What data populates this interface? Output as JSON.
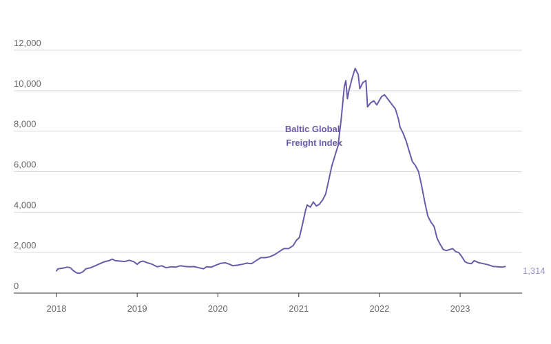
{
  "chart_data": {
    "type": "line",
    "colors": {
      "series": "#6a5aa8",
      "end_label": "#9a8fcc"
    },
    "ylim": [
      0,
      12000
    ],
    "yticks": [
      {
        "value": 0,
        "label": "0"
      },
      {
        "value": 2000,
        "label": "2,000"
      },
      {
        "value": 4000,
        "label": "4,000"
      },
      {
        "value": 6000,
        "label": "6,000"
      },
      {
        "value": 8000,
        "label": "8,000"
      },
      {
        "value": 10000,
        "label": "10,000"
      },
      {
        "value": 12000,
        "label": "12,000"
      }
    ],
    "xlim": [
      "2018-01-01",
      "2023-08-10"
    ],
    "xticks": [
      {
        "value": "2018-01-01",
        "label": "2018"
      },
      {
        "value": "2019-01-01",
        "label": "2019"
      },
      {
        "value": "2020-01-01",
        "label": "2020"
      },
      {
        "value": "2021-01-01",
        "label": "2021"
      },
      {
        "value": "2022-01-01",
        "label": "2022"
      },
      {
        "value": "2023-01-01",
        "label": "2023"
      }
    ],
    "series": [
      {
        "name": "Baltic Global Freight Index",
        "end_value_label": "1,314",
        "points": [
          [
            "2018-01-01",
            1100
          ],
          [
            "2018-01-08",
            1200
          ],
          [
            "2018-01-29",
            1230
          ],
          [
            "2018-02-19",
            1280
          ],
          [
            "2018-03-05",
            1250
          ],
          [
            "2018-03-19",
            1100
          ],
          [
            "2018-04-02",
            1000
          ],
          [
            "2018-04-16",
            980
          ],
          [
            "2018-04-30",
            1050
          ],
          [
            "2018-05-14",
            1200
          ],
          [
            "2018-06-04",
            1250
          ],
          [
            "2018-06-25",
            1350
          ],
          [
            "2018-07-16",
            1450
          ],
          [
            "2018-08-06",
            1550
          ],
          [
            "2018-08-27",
            1600
          ],
          [
            "2018-09-10",
            1680
          ],
          [
            "2018-09-24",
            1600
          ],
          [
            "2018-10-15",
            1580
          ],
          [
            "2018-11-05",
            1560
          ],
          [
            "2018-11-26",
            1620
          ],
          [
            "2018-12-17",
            1550
          ],
          [
            "2019-01-01",
            1420
          ],
          [
            "2019-01-14",
            1540
          ],
          [
            "2019-01-28",
            1580
          ],
          [
            "2019-02-18",
            1490
          ],
          [
            "2019-03-11",
            1420
          ],
          [
            "2019-04-01",
            1300
          ],
          [
            "2019-04-22",
            1350
          ],
          [
            "2019-05-13",
            1250
          ],
          [
            "2019-06-03",
            1300
          ],
          [
            "2019-06-24",
            1280
          ],
          [
            "2019-07-15",
            1350
          ],
          [
            "2019-08-05",
            1320
          ],
          [
            "2019-08-26",
            1300
          ],
          [
            "2019-09-16",
            1310
          ],
          [
            "2019-10-07",
            1250
          ],
          [
            "2019-10-28",
            1200
          ],
          [
            "2019-11-11",
            1300
          ],
          [
            "2019-12-02",
            1280
          ],
          [
            "2019-12-23",
            1380
          ],
          [
            "2020-01-13",
            1470
          ],
          [
            "2020-02-03",
            1500
          ],
          [
            "2020-02-24",
            1420
          ],
          [
            "2020-03-09",
            1350
          ],
          [
            "2020-03-30",
            1380
          ],
          [
            "2020-04-20",
            1420
          ],
          [
            "2020-05-11",
            1480
          ],
          [
            "2020-06-01",
            1450
          ],
          [
            "2020-06-22",
            1600
          ],
          [
            "2020-07-13",
            1750
          ],
          [
            "2020-08-03",
            1750
          ],
          [
            "2020-08-24",
            1800
          ],
          [
            "2020-09-14",
            1900
          ],
          [
            "2020-10-05",
            2050
          ],
          [
            "2020-10-26",
            2200
          ],
          [
            "2020-11-16",
            2200
          ],
          [
            "2020-12-07",
            2350
          ],
          [
            "2020-12-21",
            2600
          ],
          [
            "2021-01-04",
            2750
          ],
          [
            "2021-01-18",
            3400
          ],
          [
            "2021-02-01",
            4100
          ],
          [
            "2021-02-08",
            4350
          ],
          [
            "2021-02-22",
            4250
          ],
          [
            "2021-03-08",
            4500
          ],
          [
            "2021-03-22",
            4300
          ],
          [
            "2021-04-05",
            4400
          ],
          [
            "2021-04-19",
            4600
          ],
          [
            "2021-05-03",
            4900
          ],
          [
            "2021-05-17",
            5600
          ],
          [
            "2021-05-31",
            6300
          ],
          [
            "2021-06-14",
            6800
          ],
          [
            "2021-06-28",
            7300
          ],
          [
            "2021-07-12",
            8600
          ],
          [
            "2021-07-26",
            10200
          ],
          [
            "2021-08-02",
            10500
          ],
          [
            "2021-08-09",
            9600
          ],
          [
            "2021-08-16",
            10000
          ],
          [
            "2021-08-30",
            10600
          ],
          [
            "2021-09-13",
            11100
          ],
          [
            "2021-09-27",
            10800
          ],
          [
            "2021-10-04",
            10100
          ],
          [
            "2021-10-18",
            10400
          ],
          [
            "2021-11-01",
            10500
          ],
          [
            "2021-11-08",
            9200
          ],
          [
            "2021-11-22",
            9400
          ],
          [
            "2021-12-06",
            9500
          ],
          [
            "2021-12-20",
            9300
          ],
          [
            "2022-01-10",
            9700
          ],
          [
            "2022-01-24",
            9800
          ],
          [
            "2022-02-07",
            9600
          ],
          [
            "2022-02-28",
            9300
          ],
          [
            "2022-03-14",
            9100
          ],
          [
            "2022-03-28",
            8600
          ],
          [
            "2022-04-04",
            8200
          ],
          [
            "2022-04-18",
            7900
          ],
          [
            "2022-05-02",
            7500
          ],
          [
            "2022-05-16",
            7000
          ],
          [
            "2022-05-30",
            6500
          ],
          [
            "2022-06-13",
            6300
          ],
          [
            "2022-06-27",
            6000
          ],
          [
            "2022-07-11",
            5300
          ],
          [
            "2022-07-25",
            4500
          ],
          [
            "2022-08-08",
            3800
          ],
          [
            "2022-08-22",
            3500
          ],
          [
            "2022-09-05",
            3300
          ],
          [
            "2022-09-19",
            2700
          ],
          [
            "2022-10-03",
            2400
          ],
          [
            "2022-10-17",
            2150
          ],
          [
            "2022-10-31",
            2100
          ],
          [
            "2022-11-14",
            2150
          ],
          [
            "2022-11-28",
            2200
          ],
          [
            "2022-12-12",
            2050
          ],
          [
            "2022-12-26",
            2000
          ],
          [
            "2023-01-09",
            1800
          ],
          [
            "2023-01-23",
            1550
          ],
          [
            "2023-02-06",
            1480
          ],
          [
            "2023-02-20",
            1450
          ],
          [
            "2023-03-06",
            1600
          ],
          [
            "2023-03-27",
            1500
          ],
          [
            "2023-04-17",
            1450
          ],
          [
            "2023-05-08",
            1400
          ],
          [
            "2023-05-29",
            1320
          ],
          [
            "2023-06-19",
            1300
          ],
          [
            "2023-07-10",
            1280
          ],
          [
            "2023-07-24",
            1314
          ]
        ]
      }
    ]
  },
  "series_label_lines": [
    "Baltic Global",
    "Freight Index"
  ]
}
